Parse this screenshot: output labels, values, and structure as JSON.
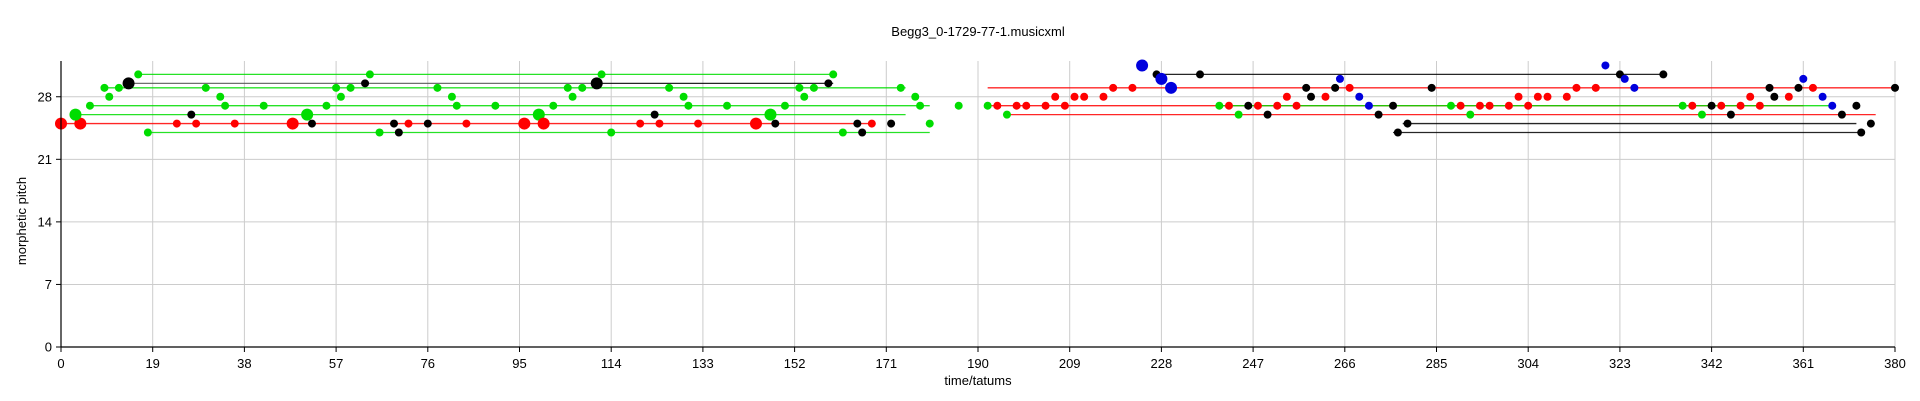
{
  "chart_data": {
    "type": "scatter",
    "title": "Begg3_0-1729-77-1.musicxml",
    "xlabel": "time/tatums",
    "ylabel": "morphetic pitch",
    "xlim": [
      0,
      380
    ],
    "ylim": [
      0,
      32
    ],
    "xticks": [
      0,
      19,
      38,
      57,
      76,
      95,
      114,
      133,
      152,
      171,
      190,
      209,
      228,
      247,
      266,
      285,
      304,
      323,
      342,
      361,
      380
    ],
    "yticks": [
      0,
      7,
      14,
      21,
      28
    ],
    "grid": true,
    "colors": {
      "green": "#00dd00",
      "red": "#ff0000",
      "black": "#000000",
      "blue": "#0000dd",
      "gray": "#555555"
    },
    "segments": [
      {
        "x1": 16,
        "x2": 160,
        "y": 30.5,
        "color": "green"
      },
      {
        "x1": 14,
        "x2": 111,
        "y": 29.5,
        "color": "gray"
      },
      {
        "x1": 111,
        "x2": 160,
        "y": 29.5,
        "color": "black"
      },
      {
        "x1": 9,
        "x2": 175,
        "y": 29,
        "color": "green"
      },
      {
        "x1": 6,
        "x2": 180,
        "y": 27,
        "color": "green"
      },
      {
        "x1": 3,
        "x2": 175,
        "y": 26,
        "color": "green"
      },
      {
        "x1": 0,
        "x2": 168,
        "y": 25,
        "color": "red"
      },
      {
        "x1": 18,
        "x2": 180,
        "y": 24,
        "color": "green"
      },
      {
        "x1": 192,
        "x2": 380,
        "y": 29,
        "color": "red"
      },
      {
        "x1": 228,
        "x2": 332,
        "y": 30.5,
        "color": "black"
      },
      {
        "x1": 192,
        "x2": 361,
        "y": 27,
        "color": "red"
      },
      {
        "x1": 196,
        "x2": 376,
        "y": 26,
        "color": "red"
      },
      {
        "x1": 240,
        "x2": 367,
        "y": 27,
        "color": "green"
      },
      {
        "x1": 278,
        "x2": 372,
        "y": 25,
        "color": "black"
      },
      {
        "x1": 276,
        "x2": 373,
        "y": 24,
        "color": "black"
      }
    ],
    "points": [
      {
        "x": 0,
        "y": 25,
        "color": "red",
        "size": "large"
      },
      {
        "x": 4,
        "y": 25,
        "color": "red",
        "size": "large"
      },
      {
        "x": 3,
        "y": 26,
        "color": "green",
        "size": "large"
      },
      {
        "x": 6,
        "y": 27,
        "color": "green",
        "size": "small"
      },
      {
        "x": 9,
        "y": 29,
        "color": "green",
        "size": "small"
      },
      {
        "x": 10,
        "y": 28,
        "color": "green",
        "size": "small"
      },
      {
        "x": 12,
        "y": 29,
        "color": "green",
        "size": "small"
      },
      {
        "x": 14,
        "y": 29.5,
        "color": "black",
        "size": "large"
      },
      {
        "x": 16,
        "y": 30.5,
        "color": "green",
        "size": "small"
      },
      {
        "x": 18,
        "y": 24,
        "color": "green",
        "size": "small"
      },
      {
        "x": 24,
        "y": 25,
        "color": "red",
        "size": "small"
      },
      {
        "x": 27,
        "y": 26,
        "color": "black",
        "size": "small"
      },
      {
        "x": 28,
        "y": 25,
        "color": "red",
        "size": "small"
      },
      {
        "x": 30,
        "y": 29,
        "color": "green",
        "size": "small"
      },
      {
        "x": 33,
        "y": 28,
        "color": "green",
        "size": "small"
      },
      {
        "x": 34,
        "y": 27,
        "color": "green",
        "size": "small"
      },
      {
        "x": 36,
        "y": 25,
        "color": "red",
        "size": "small"
      },
      {
        "x": 42,
        "y": 27,
        "color": "green",
        "size": "small"
      },
      {
        "x": 48,
        "y": 25,
        "color": "red",
        "size": "large"
      },
      {
        "x": 51,
        "y": 26,
        "color": "green",
        "size": "large"
      },
      {
        "x": 52,
        "y": 25,
        "color": "black",
        "size": "small"
      },
      {
        "x": 55,
        "y": 27,
        "color": "green",
        "size": "small"
      },
      {
        "x": 57,
        "y": 29,
        "color": "green",
        "size": "small"
      },
      {
        "x": 58,
        "y": 28,
        "color": "green",
        "size": "small"
      },
      {
        "x": 60,
        "y": 29,
        "color": "green",
        "size": "small"
      },
      {
        "x": 63,
        "y": 29.5,
        "color": "black",
        "size": "small"
      },
      {
        "x": 64,
        "y": 30.5,
        "color": "green",
        "size": "small"
      },
      {
        "x": 66,
        "y": 24,
        "color": "green",
        "size": "small"
      },
      {
        "x": 69,
        "y": 25,
        "color": "black",
        "size": "small"
      },
      {
        "x": 70,
        "y": 24,
        "color": "black",
        "size": "small"
      },
      {
        "x": 72,
        "y": 25,
        "color": "red",
        "size": "small"
      },
      {
        "x": 76,
        "y": 25,
        "color": "black",
        "size": "small"
      },
      {
        "x": 78,
        "y": 29,
        "color": "green",
        "size": "small"
      },
      {
        "x": 81,
        "y": 28,
        "color": "green",
        "size": "small"
      },
      {
        "x": 82,
        "y": 27,
        "color": "green",
        "size": "small"
      },
      {
        "x": 84,
        "y": 25,
        "color": "red",
        "size": "small"
      },
      {
        "x": 90,
        "y": 27,
        "color": "green",
        "size": "small"
      },
      {
        "x": 96,
        "y": 25,
        "color": "red",
        "size": "large"
      },
      {
        "x": 99,
        "y": 26,
        "color": "green",
        "size": "large"
      },
      {
        "x": 100,
        "y": 25,
        "color": "red",
        "size": "large"
      },
      {
        "x": 102,
        "y": 27,
        "color": "green",
        "size": "small"
      },
      {
        "x": 105,
        "y": 29,
        "color": "green",
        "size": "small"
      },
      {
        "x": 106,
        "y": 28,
        "color": "green",
        "size": "small"
      },
      {
        "x": 108,
        "y": 29,
        "color": "green",
        "size": "small"
      },
      {
        "x": 111,
        "y": 29.5,
        "color": "black",
        "size": "large"
      },
      {
        "x": 112,
        "y": 30.5,
        "color": "green",
        "size": "small"
      },
      {
        "x": 114,
        "y": 24,
        "color": "green",
        "size": "small"
      },
      {
        "x": 120,
        "y": 25,
        "color": "red",
        "size": "small"
      },
      {
        "x": 123,
        "y": 26,
        "color": "black",
        "size": "small"
      },
      {
        "x": 124,
        "y": 25,
        "color": "red",
        "size": "small"
      },
      {
        "x": 126,
        "y": 29,
        "color": "green",
        "size": "small"
      },
      {
        "x": 129,
        "y": 28,
        "color": "green",
        "size": "small"
      },
      {
        "x": 130,
        "y": 27,
        "color": "green",
        "size": "small"
      },
      {
        "x": 132,
        "y": 25,
        "color": "red",
        "size": "small"
      },
      {
        "x": 138,
        "y": 27,
        "color": "green",
        "size": "small"
      },
      {
        "x": 144,
        "y": 25,
        "color": "red",
        "size": "large"
      },
      {
        "x": 147,
        "y": 26,
        "color": "green",
        "size": "large"
      },
      {
        "x": 148,
        "y": 25,
        "color": "black",
        "size": "small"
      },
      {
        "x": 150,
        "y": 27,
        "color": "green",
        "size": "small"
      },
      {
        "x": 153,
        "y": 29,
        "color": "green",
        "size": "small"
      },
      {
        "x": 154,
        "y": 28,
        "color": "green",
        "size": "small"
      },
      {
        "x": 156,
        "y": 29,
        "color": "green",
        "size": "small"
      },
      {
        "x": 159,
        "y": 29.5,
        "color": "black",
        "size": "small"
      },
      {
        "x": 160,
        "y": 30.5,
        "color": "green",
        "size": "small"
      },
      {
        "x": 162,
        "y": 24,
        "color": "green",
        "size": "small"
      },
      {
        "x": 165,
        "y": 25,
        "color": "black",
        "size": "small"
      },
      {
        "x": 166,
        "y": 24,
        "color": "black",
        "size": "small"
      },
      {
        "x": 168,
        "y": 25,
        "color": "red",
        "size": "small"
      },
      {
        "x": 172,
        "y": 25,
        "color": "black",
        "size": "small"
      },
      {
        "x": 174,
        "y": 29,
        "color": "green",
        "size": "small"
      },
      {
        "x": 177,
        "y": 28,
        "color": "green",
        "size": "small"
      },
      {
        "x": 178,
        "y": 27,
        "color": "green",
        "size": "small"
      },
      {
        "x": 180,
        "y": 25,
        "color": "green",
        "size": "small"
      },
      {
        "x": 186,
        "y": 27,
        "color": "green",
        "size": "small"
      },
      {
        "x": 192,
        "y": 27,
        "color": "green",
        "size": "small"
      },
      {
        "x": 194,
        "y": 27,
        "color": "red",
        "size": "small"
      },
      {
        "x": 196,
        "y": 26,
        "color": "green",
        "size": "small"
      },
      {
        "x": 198,
        "y": 27,
        "color": "red",
        "size": "small"
      },
      {
        "x": 200,
        "y": 27,
        "color": "red",
        "size": "small"
      },
      {
        "x": 204,
        "y": 27,
        "color": "red",
        "size": "small"
      },
      {
        "x": 206,
        "y": 28,
        "color": "red",
        "size": "small"
      },
      {
        "x": 208,
        "y": 27,
        "color": "red",
        "size": "small"
      },
      {
        "x": 210,
        "y": 28,
        "color": "red",
        "size": "small"
      },
      {
        "x": 212,
        "y": 28,
        "color": "red",
        "size": "small"
      },
      {
        "x": 216,
        "y": 28,
        "color": "red",
        "size": "small"
      },
      {
        "x": 218,
        "y": 29,
        "color": "red",
        "size": "small"
      },
      {
        "x": 222,
        "y": 29,
        "color": "red",
        "size": "small"
      },
      {
        "x": 224,
        "y": 31.5,
        "color": "blue",
        "size": "large"
      },
      {
        "x": 227,
        "y": 30.5,
        "color": "black",
        "size": "small"
      },
      {
        "x": 228,
        "y": 30,
        "color": "blue",
        "size": "large"
      },
      {
        "x": 230,
        "y": 29,
        "color": "blue",
        "size": "large"
      },
      {
        "x": 236,
        "y": 30.5,
        "color": "black",
        "size": "small"
      },
      {
        "x": 240,
        "y": 27,
        "color": "green",
        "size": "small"
      },
      {
        "x": 242,
        "y": 27,
        "color": "red",
        "size": "small"
      },
      {
        "x": 244,
        "y": 26,
        "color": "green",
        "size": "small"
      },
      {
        "x": 246,
        "y": 27,
        "color": "black",
        "size": "small"
      },
      {
        "x": 248,
        "y": 27,
        "color": "red",
        "size": "small"
      },
      {
        "x": 250,
        "y": 26,
        "color": "black",
        "size": "small"
      },
      {
        "x": 252,
        "y": 27,
        "color": "red",
        "size": "small"
      },
      {
        "x": 254,
        "y": 28,
        "color": "red",
        "size": "small"
      },
      {
        "x": 256,
        "y": 27,
        "color": "red",
        "size": "small"
      },
      {
        "x": 258,
        "y": 29,
        "color": "black",
        "size": "small"
      },
      {
        "x": 259,
        "y": 28,
        "color": "black",
        "size": "small"
      },
      {
        "x": 262,
        "y": 28,
        "color": "red",
        "size": "small"
      },
      {
        "x": 264,
        "y": 29,
        "color": "black",
        "size": "small"
      },
      {
        "x": 265,
        "y": 30,
        "color": "blue",
        "size": "small"
      },
      {
        "x": 267,
        "y": 29,
        "color": "red",
        "size": "small"
      },
      {
        "x": 269,
        "y": 28,
        "color": "blue",
        "size": "small"
      },
      {
        "x": 271,
        "y": 27,
        "color": "blue",
        "size": "small"
      },
      {
        "x": 273,
        "y": 26,
        "color": "black",
        "size": "small"
      },
      {
        "x": 276,
        "y": 27,
        "color": "black",
        "size": "small"
      },
      {
        "x": 277,
        "y": 24,
        "color": "black",
        "size": "small"
      },
      {
        "x": 279,
        "y": 25,
        "color": "black",
        "size": "small"
      },
      {
        "x": 284,
        "y": 29,
        "color": "black",
        "size": "small"
      },
      {
        "x": 288,
        "y": 27,
        "color": "green",
        "size": "small"
      },
      {
        "x": 290,
        "y": 27,
        "color": "red",
        "size": "small"
      },
      {
        "x": 292,
        "y": 26,
        "color": "green",
        "size": "small"
      },
      {
        "x": 294,
        "y": 27,
        "color": "red",
        "size": "small"
      },
      {
        "x": 296,
        "y": 27,
        "color": "red",
        "size": "small"
      },
      {
        "x": 300,
        "y": 27,
        "color": "red",
        "size": "small"
      },
      {
        "x": 302,
        "y": 28,
        "color": "red",
        "size": "small"
      },
      {
        "x": 304,
        "y": 27,
        "color": "red",
        "size": "small"
      },
      {
        "x": 306,
        "y": 28,
        "color": "red",
        "size": "small"
      },
      {
        "x": 308,
        "y": 28,
        "color": "red",
        "size": "small"
      },
      {
        "x": 312,
        "y": 28,
        "color": "red",
        "size": "small"
      },
      {
        "x": 314,
        "y": 29,
        "color": "red",
        "size": "small"
      },
      {
        "x": 318,
        "y": 29,
        "color": "red",
        "size": "small"
      },
      {
        "x": 320,
        "y": 31.5,
        "color": "blue",
        "size": "small"
      },
      {
        "x": 323,
        "y": 30.5,
        "color": "black",
        "size": "small"
      },
      {
        "x": 324,
        "y": 30,
        "color": "blue",
        "size": "small"
      },
      {
        "x": 326,
        "y": 29,
        "color": "blue",
        "size": "small"
      },
      {
        "x": 332,
        "y": 30.5,
        "color": "black",
        "size": "small"
      },
      {
        "x": 336,
        "y": 27,
        "color": "green",
        "size": "small"
      },
      {
        "x": 338,
        "y": 27,
        "color": "red",
        "size": "small"
      },
      {
        "x": 340,
        "y": 26,
        "color": "green",
        "size": "small"
      },
      {
        "x": 342,
        "y": 27,
        "color": "black",
        "size": "small"
      },
      {
        "x": 344,
        "y": 27,
        "color": "red",
        "size": "small"
      },
      {
        "x": 346,
        "y": 26,
        "color": "black",
        "size": "small"
      },
      {
        "x": 348,
        "y": 27,
        "color": "red",
        "size": "small"
      },
      {
        "x": 350,
        "y": 28,
        "color": "red",
        "size": "small"
      },
      {
        "x": 352,
        "y": 27,
        "color": "red",
        "size": "small"
      },
      {
        "x": 354,
        "y": 29,
        "color": "black",
        "size": "small"
      },
      {
        "x": 355,
        "y": 28,
        "color": "black",
        "size": "small"
      },
      {
        "x": 358,
        "y": 28,
        "color": "red",
        "size": "small"
      },
      {
        "x": 360,
        "y": 29,
        "color": "black",
        "size": "small"
      },
      {
        "x": 361,
        "y": 30,
        "color": "blue",
        "size": "small"
      },
      {
        "x": 363,
        "y": 29,
        "color": "red",
        "size": "small"
      },
      {
        "x": 365,
        "y": 28,
        "color": "blue",
        "size": "small"
      },
      {
        "x": 367,
        "y": 27,
        "color": "blue",
        "size": "small"
      },
      {
        "x": 369,
        "y": 26,
        "color": "black",
        "size": "small"
      },
      {
        "x": 372,
        "y": 27,
        "color": "black",
        "size": "small"
      },
      {
        "x": 373,
        "y": 24,
        "color": "black",
        "size": "small"
      },
      {
        "x": 375,
        "y": 25,
        "color": "black",
        "size": "small"
      },
      {
        "x": 380,
        "y": 29,
        "color": "black",
        "size": "small"
      }
    ]
  }
}
